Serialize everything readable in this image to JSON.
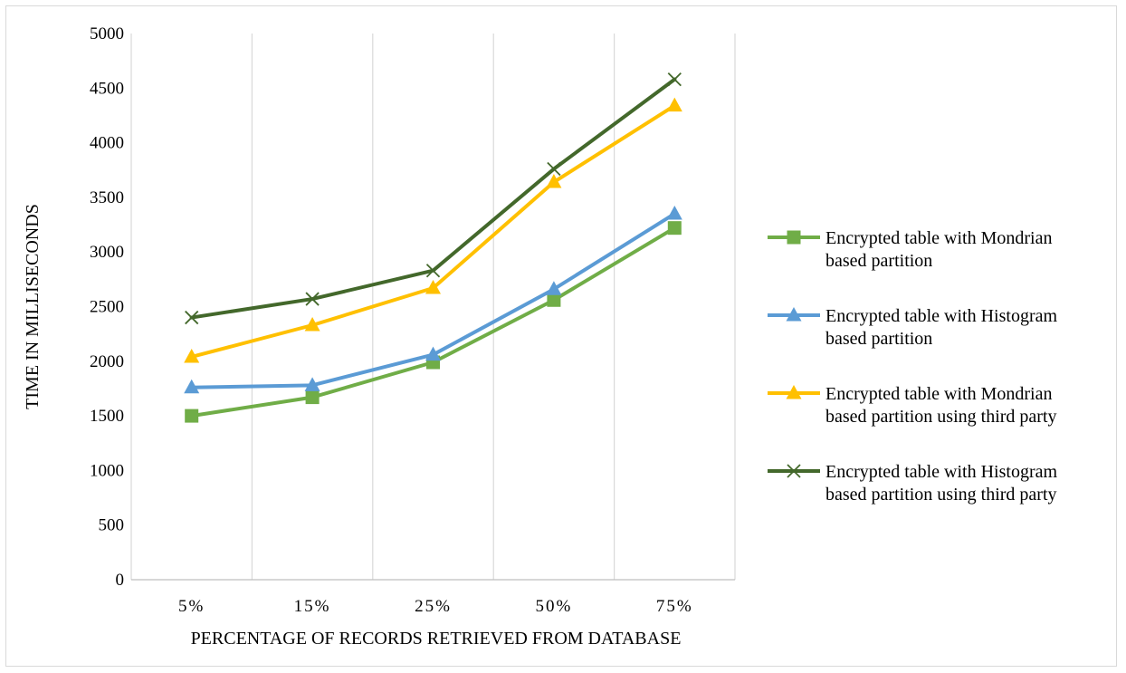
{
  "chart_data": {
    "type": "line",
    "title": "",
    "xlabel": "PERCENTAGE OF RECORDS RETRIEVED FROM DATABASE",
    "ylabel": "TIME IN MILLISECONDS",
    "categories": [
      "5%",
      "15%",
      "25%",
      "50%",
      "75%"
    ],
    "ylim": [
      0,
      5000
    ],
    "yticks": [
      "0",
      "500",
      "1000",
      "1500",
      "2000",
      "2500",
      "3000",
      "3500",
      "4000",
      "4500",
      "5000"
    ],
    "grid": "vertical gridlines between categories",
    "legend_position": "right",
    "series": [
      {
        "name_lines": [
          "Encrypted table with Mondrian",
          "based partition"
        ],
        "values": [
          1500,
          1670,
          1990,
          2560,
          3220
        ],
        "color": "#70ad47",
        "marker": "square"
      },
      {
        "name_lines": [
          "Encrypted table with Histogram",
          "based partition"
        ],
        "values": [
          1760,
          1780,
          2060,
          2660,
          3350
        ],
        "color": "#5b9bd5",
        "marker": "triangle"
      },
      {
        "name_lines": [
          "Encrypted table with Mondrian",
          "based partition using third party"
        ],
        "values": [
          2040,
          2330,
          2670,
          3640,
          4340
        ],
        "color": "#ffc000",
        "marker": "triangle"
      },
      {
        "name_lines": [
          "Encrypted table with Histogram",
          "based partition using third party"
        ],
        "values": [
          2400,
          2570,
          2830,
          3760,
          4580
        ],
        "color": "#43682b",
        "marker": "x"
      }
    ]
  }
}
